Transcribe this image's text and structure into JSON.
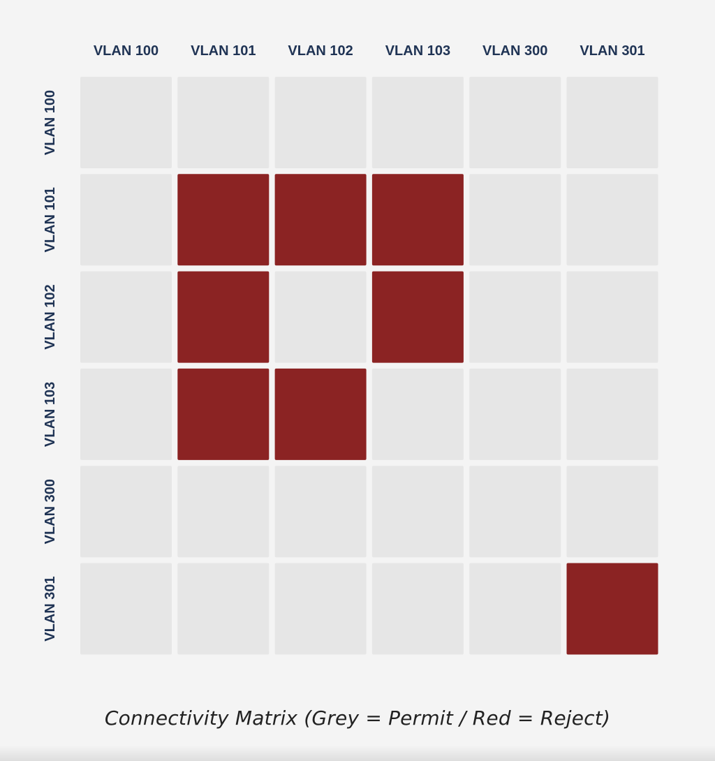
{
  "chart_data": {
    "type": "heatmap",
    "title": "Connectivity Matrix (Grey = Permit / Red = Reject)",
    "columns": [
      "VLAN 100",
      "VLAN 101",
      "VLAN 102",
      "VLAN 103",
      "VLAN 300",
      "VLAN 301"
    ],
    "rows": [
      "VLAN 100",
      "VLAN 101",
      "VLAN 102",
      "VLAN 103",
      "VLAN 300",
      "VLAN 301"
    ],
    "values": [
      [
        "Permit",
        "Permit",
        "Permit",
        "Permit",
        "Permit",
        "Permit"
      ],
      [
        "Permit",
        "Reject",
        "Reject",
        "Reject",
        "Permit",
        "Permit"
      ],
      [
        "Permit",
        "Reject",
        "Permit",
        "Reject",
        "Permit",
        "Permit"
      ],
      [
        "Permit",
        "Reject",
        "Reject",
        "Permit",
        "Permit",
        "Permit"
      ],
      [
        "Permit",
        "Permit",
        "Permit",
        "Permit",
        "Permit",
        "Permit"
      ],
      [
        "Permit",
        "Permit",
        "Permit",
        "Permit",
        "Permit",
        "Reject"
      ]
    ],
    "colors": {
      "Permit": "#e6e6e6",
      "Reject": "#8b2323"
    },
    "label_color": "#1f3354"
  }
}
